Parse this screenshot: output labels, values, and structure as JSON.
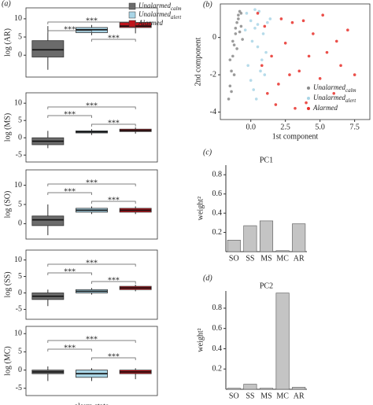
{
  "chart_data": [
    {
      "type": "box",
      "panel_label": "(a)",
      "y_label": "log (AR)",
      "ylim": [
        -6,
        13
      ],
      "yticks": [
        0,
        5,
        10
      ],
      "series": [
        {
          "name": "Unalarmed",
          "subscript": "calm",
          "color": "#6b6b6b",
          "whislo": -4,
          "q1": -0.5,
          "med": 1.5,
          "q3": 4,
          "whishi": 8
        },
        {
          "name": "Unalarmed",
          "subscript": "alert",
          "color": "#a9d5e6",
          "whislo": 5.5,
          "q1": 6.2,
          "med": 7,
          "q3": 7.6,
          "whishi": 8.3
        },
        {
          "name": "Alarmed",
          "color": "#c0141c",
          "whislo": 6,
          "q1": 7.6,
          "med": 8,
          "q3": 9,
          "whishi": 9.6
        }
      ],
      "significance": [
        "***",
        "***",
        "***"
      ]
    },
    {
      "type": "box",
      "y_label": "log (MS)",
      "ylim": [
        -7,
        13
      ],
      "yticks": [
        -5,
        0,
        5,
        10
      ],
      "series": [
        {
          "color": "#6b6b6b",
          "whislo": -3,
          "q1": -2,
          "med": -1,
          "q3": 0,
          "whishi": 2
        },
        {
          "color": "#a9d5e6",
          "whislo": 0.8,
          "q1": 1.4,
          "med": 1.7,
          "q3": 2,
          "whishi": 2.5
        },
        {
          "color": "#c0141c",
          "whislo": 1.2,
          "q1": 1.8,
          "med": 2.1,
          "q3": 2.5,
          "whishi": 3
        }
      ],
      "significance": [
        "***",
        "***",
        "***"
      ]
    },
    {
      "type": "box",
      "y_label": "log (SO)",
      "ylim": [
        -4,
        14
      ],
      "yticks": [
        0,
        5,
        10
      ],
      "series": [
        {
          "color": "#6b6b6b",
          "whislo": -3,
          "q1": -0.5,
          "med": 1,
          "q3": 2,
          "whishi": 5
        },
        {
          "color": "#a9d5e6",
          "whislo": 2.5,
          "q1": 3,
          "med": 3.5,
          "q3": 4,
          "whishi": 4.5
        },
        {
          "color": "#c0141c",
          "whislo": 2.5,
          "q1": 3,
          "med": 3.5,
          "q3": 4,
          "whishi": 4.5
        }
      ],
      "significance": [
        "***",
        "***",
        "***"
      ]
    },
    {
      "type": "box",
      "y_label": "log (SS)",
      "ylim": [
        -8,
        13
      ],
      "yticks": [
        -5,
        0,
        5,
        10
      ],
      "series": [
        {
          "color": "#6b6b6b",
          "whislo": -4,
          "q1": -2,
          "med": -1,
          "q3": 0,
          "whishi": 1
        },
        {
          "color": "#a9d5e6",
          "whislo": -0.5,
          "q1": 0,
          "med": 0.5,
          "q3": 1,
          "whishi": 1.5
        },
        {
          "color": "#c0141c",
          "whislo": 0.5,
          "q1": 1,
          "med": 1.5,
          "q3": 2,
          "whishi": 2.5
        }
      ],
      "significance": [
        "***",
        "***",
        "***"
      ]
    },
    {
      "type": "box",
      "y_label": "log (MC)",
      "x_label": "alarm state",
      "ylim": [
        -7,
        12
      ],
      "yticks": [
        -5,
        0,
        5,
        10
      ],
      "series": [
        {
          "color": "#6b6b6b",
          "whislo": -3,
          "q1": -1,
          "med": -0.5,
          "q3": 0,
          "whishi": 1
        },
        {
          "color": "#a9d5e6",
          "whislo": -3,
          "q1": -2,
          "med": -1,
          "q3": 0,
          "whishi": 0.5
        },
        {
          "color": "#c0141c",
          "whislo": -2.5,
          "q1": -1,
          "med": -0.5,
          "q3": 0,
          "whishi": 0.5
        }
      ],
      "significance": [
        "***",
        "***",
        "***"
      ]
    },
    {
      "type": "scatter",
      "panel_label": "(b)",
      "x_label": "1st component",
      "y_label": "2nd component",
      "xlim": [
        -2.2,
        8.6
      ],
      "ylim": [
        -4.4,
        1.8
      ],
      "xticks": [
        {
          "value": 0,
          "label": "0.0"
        },
        2.5,
        {
          "value": 5,
          "label": "5.0"
        },
        7.5
      ],
      "yticks": [
        -4,
        -2,
        0
      ],
      "series": [
        {
          "name": "Unalarmed",
          "subscript": "calm",
          "color": "#8a8a8a",
          "x": [
            -1.6,
            -1.5,
            -1.4,
            -1.3,
            -1.2,
            -1.1,
            -1.0,
            -0.9,
            -0.8,
            -0.7,
            -1.5,
            -1.3,
            -1.1,
            -0.9,
            -0.7,
            -1.4,
            -1.2,
            -1.0,
            -0.8,
            -0.6
          ],
          "y": [
            -3.3,
            -2.6,
            -1.8,
            -1.0,
            -0.4,
            0.2,
            0.8,
            1.2,
            1.4,
            0.6,
            -1.2,
            -0.2,
            0.5,
            1.0,
            1.3,
            -2.9,
            -2.0,
            -0.6,
            0.3,
            -0.1
          ]
        },
        {
          "name": "Unalarmed",
          "subscript": "alert",
          "color": "#a9d5e6",
          "x": [
            -0.3,
            0,
            0.3,
            0.5,
            0.8,
            1.0,
            1.2,
            0.2,
            -0.2,
            0.6,
            0.9,
            1.4,
            0.4,
            0.1,
            -0.4,
            0.7,
            1.1,
            0.3,
            0.0,
            0.5
          ],
          "y": [
            1.3,
            0.9,
            0.5,
            -0.5,
            -1.2,
            -2.0,
            0.8,
            -2.8,
            -1.5,
            1.4,
            0.2,
            1.0,
            -3.3,
            -0.2,
            0.4,
            -1.8,
            -0.8,
            1.5,
            -2.3,
            0.7
          ]
        },
        {
          "name": "Alarmed",
          "color": "#e8302a",
          "x": [
            0.5,
            1.0,
            1.5,
            2.0,
            2.5,
            3.0,
            3.5,
            4.0,
            4.5,
            5.0,
            5.5,
            6.0,
            6.5,
            7.0,
            7.5,
            1.2,
            2.2,
            3.2,
            4.2,
            5.2,
            6.2,
            0.8,
            1.8,
            2.8,
            3.8
          ],
          "y": [
            1.3,
            0.6,
            -1.0,
            -2.5,
            -0.3,
            0.8,
            -1.8,
            -3.5,
            0.2,
            -2.2,
            -0.8,
            -3.0,
            -1.5,
            0.4,
            -2.0,
            -3.0,
            1.0,
            -3.8,
            -1.0,
            1.2,
            -0.2,
            -1.5,
            -3.6,
            -2.0,
            0.9
          ]
        }
      ]
    },
    {
      "type": "bar",
      "panel_label": "(c)",
      "title": "PC1",
      "y_label": "weight²",
      "categories": [
        "SO",
        "SS",
        "MS",
        "MC",
        "AR"
      ],
      "values": [
        0.12,
        0.27,
        0.32,
        0.01,
        0.29
      ],
      "color": "#c4c4c4",
      "ylim": [
        0,
        0.9
      ],
      "yticks": [
        0.2,
        0.4,
        0.6,
        0.8
      ]
    },
    {
      "type": "bar",
      "panel_label": "(d)",
      "title": "PC2",
      "y_label": "weight²",
      "categories": [
        "SO",
        "SS",
        "MS",
        "MC",
        "AR"
      ],
      "values": [
        0.01,
        0.05,
        0.01,
        0.95,
        0.02
      ],
      "color": "#c4c4c4",
      "ylim": [
        0,
        0.97
      ],
      "yticks": [
        0.2,
        0.4,
        0.6,
        0.8
      ]
    }
  ]
}
